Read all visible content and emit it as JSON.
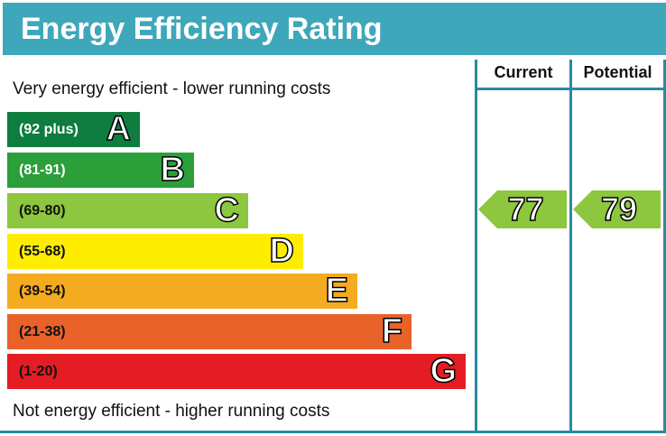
{
  "title": "Energy Efficiency Rating",
  "top_text": "Very energy efficient - lower running costs",
  "bottom_text": "Not energy efficient - higher running costs",
  "columns": {
    "current": "Current",
    "potential": "Potential"
  },
  "chart_data": {
    "type": "bar",
    "bands": [
      {
        "letter": "A",
        "range": "(92 plus)",
        "color": "#0f7d3f",
        "text_color": "#ffffff"
      },
      {
        "letter": "B",
        "range": "(81-91)",
        "color": "#2a9f3a",
        "text_color": "#ffffff"
      },
      {
        "letter": "C",
        "range": "(69-80)",
        "color": "#8dc63f",
        "text_color": "#111111"
      },
      {
        "letter": "D",
        "range": "(55-68)",
        "color": "#ffed00",
        "text_color": "#111111"
      },
      {
        "letter": "E",
        "range": "(39-54)",
        "color": "#f4ab1f",
        "text_color": "#111111"
      },
      {
        "letter": "F",
        "range": "(21-38)",
        "color": "#e8622a",
        "text_color": "#111111"
      },
      {
        "letter": "G",
        "range": "(1-20)",
        "color": "#e31d23",
        "text_color": "#111111"
      }
    ],
    "current": {
      "value": "77",
      "band": "C",
      "color": "#8dc63f"
    },
    "potential": {
      "value": "79",
      "band": "C",
      "color": "#8dc63f"
    }
  }
}
